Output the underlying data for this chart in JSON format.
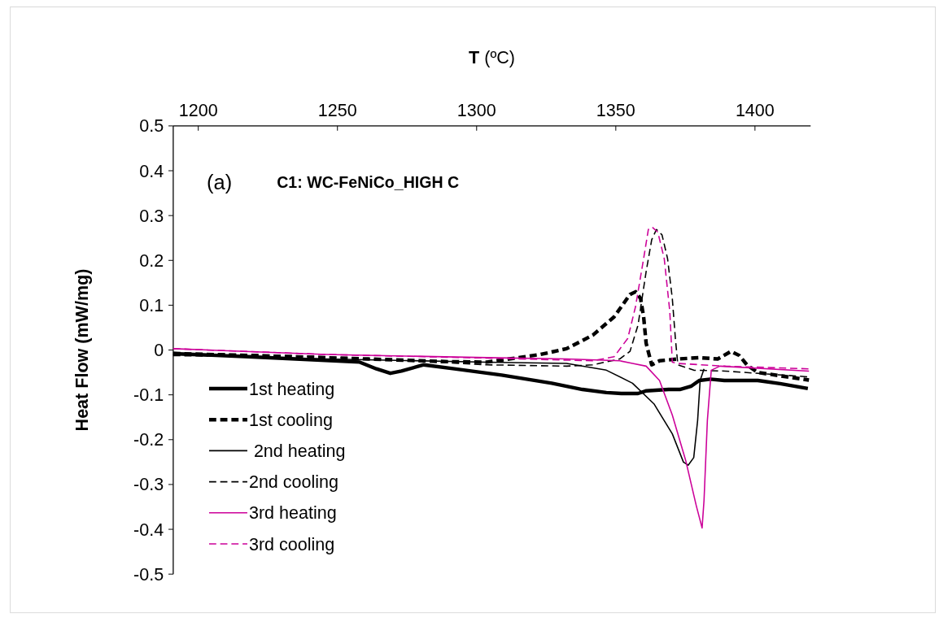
{
  "chart_data": {
    "type": "line",
    "xlabel": "T (ºC)",
    "ylabel": "Heat Flow (mW/mg)",
    "annotations": [
      "(a)",
      "C1: WC-FeNiCo_HIGH C"
    ],
    "xlim": [
      1191,
      1420
    ],
    "xticks": [
      1200,
      1250,
      1300,
      1350,
      1400
    ],
    "ylim": [
      -0.5,
      0.5
    ],
    "yticks": [
      -0.5,
      -0.4,
      -0.3,
      -0.2,
      -0.1,
      0,
      0.1,
      0.2,
      0.3,
      0.4,
      0.5
    ],
    "legend": "bottom left",
    "grid": false,
    "series": [
      {
        "name": "1st heating",
        "color": "#000000",
        "line_style": "solid",
        "x": [
          1191,
          1218,
          1258,
          1264,
          1269,
          1273,
          1281,
          1292,
          1309,
          1327,
          1338,
          1346.6,
          1352,
          1358,
          1361,
          1369,
          1373,
          1377,
          1380,
          1384,
          1389,
          1401,
          1409,
          1419
        ],
        "values": [
          -0.008,
          -0.015,
          -0.027,
          -0.042,
          -0.052,
          -0.047,
          -0.033,
          -0.042,
          -0.056,
          -0.074,
          -0.088,
          -0.095,
          -0.097,
          -0.097,
          -0.091,
          -0.088,
          -0.088,
          -0.081,
          -0.068,
          -0.065,
          -0.068,
          -0.068,
          -0.075,
          -0.086
        ]
      },
      {
        "name": "1st cooling",
        "color": "#000000",
        "line_style": "dashed",
        "x": [
          1191,
          1218,
          1261,
          1290,
          1303.7,
          1322.9,
          1332.3,
          1341.7,
          1349.4,
          1355.1,
          1357.1,
          1358.9,
          1360,
          1360.9,
          1362.9,
          1365.7,
          1372.3,
          1380,
          1386.6,
          1391.4,
          1394.3,
          1397.1,
          1400.9,
          1419.4
        ],
        "values": [
          -0.01,
          -0.012,
          -0.02,
          -0.026,
          -0.027,
          -0.01,
          0.003,
          0.033,
          0.074,
          0.124,
          0.13,
          0.115,
          0.074,
          0.015,
          -0.033,
          -0.024,
          -0.02,
          -0.017,
          -0.02,
          -0.003,
          -0.012,
          -0.033,
          -0.05,
          -0.067
        ]
      },
      {
        "name": " 2nd heating",
        "color": "#000000",
        "line_style": "solid",
        "x": [
          1191,
          1246,
          1303.7,
          1332.3,
          1346.6,
          1356,
          1363.7,
          1370.3,
          1374.3,
          1376,
          1378,
          1379.4,
          1380.3,
          1381.7
        ],
        "values": [
          -0.01,
          -0.02,
          -0.027,
          -0.03,
          -0.045,
          -0.074,
          -0.12,
          -0.187,
          -0.25,
          -0.257,
          -0.24,
          -0.157,
          -0.068,
          -0.042
        ]
      },
      {
        "name": "2nd cooling",
        "color": "#000000",
        "line_style": "dashed",
        "x": [
          1191,
          1246,
          1303.7,
          1332.3,
          1341.7,
          1351.4,
          1355.1,
          1358,
          1360.9,
          1362.9,
          1364.6,
          1366.6,
          1368.6,
          1370.3,
          1371.4,
          1372.3,
          1378,
          1389.4,
          1419.4
        ],
        "values": [
          -0.005,
          -0.015,
          -0.033,
          -0.036,
          -0.033,
          -0.02,
          -0.003,
          0.056,
          0.175,
          0.246,
          0.269,
          0.257,
          0.204,
          0.115,
          0.026,
          -0.033,
          -0.045,
          -0.047,
          -0.06
        ]
      },
      {
        "name": "3rd heating",
        "color": "#cc0099",
        "line_style": "solid",
        "x": [
          1191,
          1246,
          1303.7,
          1332.3,
          1351.4,
          1356,
          1360.9,
          1365.7,
          1370.3,
          1375.1,
          1378.9,
          1381,
          1381.7,
          1382.9,
          1384.3,
          1387.4,
          1419.4
        ],
        "values": [
          0.003,
          -0.01,
          -0.017,
          -0.02,
          -0.024,
          -0.03,
          -0.036,
          -0.068,
          -0.145,
          -0.246,
          -0.347,
          -0.397,
          -0.335,
          -0.157,
          -0.045,
          -0.036,
          -0.047
        ]
      },
      {
        "name": "3rd cooling",
        "color": "#cc0099",
        "line_style": "dashed",
        "x": [
          1191,
          1246,
          1303.7,
          1341.7,
          1349.4,
          1354.3,
          1357.1,
          1360,
          1361.7,
          1363.1,
          1365.1,
          1367.4,
          1369.4,
          1370.3,
          1372.3,
          1389.4,
          1419.4
        ],
        "values": [
          0.003,
          -0.01,
          -0.018,
          -0.024,
          -0.015,
          0.026,
          0.097,
          0.204,
          0.269,
          0.274,
          0.263,
          0.204,
          0.086,
          -0.027,
          -0.03,
          -0.036,
          -0.042
        ]
      }
    ]
  }
}
